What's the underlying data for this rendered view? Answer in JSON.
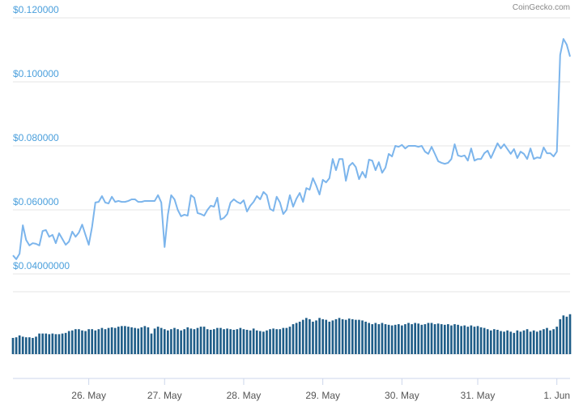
{
  "chart_data": {
    "type": "line",
    "credit": "CoinGecko.com",
    "color": "#7cb5ec",
    "ylim": [
      0.04,
      0.12
    ],
    "yticks": [
      {
        "value": 0.04,
        "label": "$0.04000000"
      },
      {
        "value": 0.06,
        "label": "$0.060000"
      },
      {
        "value": 0.08,
        "label": "$0.080000"
      },
      {
        "value": 0.1,
        "label": "$0.100000"
      },
      {
        "value": 0.12,
        "label": "$0.120000"
      }
    ],
    "grid": true,
    "categories": [
      null,
      null,
      null,
      null,
      null,
      null,
      null,
      null,
      null,
      null,
      null,
      null,
      null,
      null,
      null,
      null,
      null,
      null,
      null,
      null,
      null,
      null,
      null,
      "26. May",
      null,
      null,
      null,
      null,
      null,
      null,
      null,
      null,
      null,
      null,
      null,
      null,
      null,
      null,
      null,
      null,
      null,
      null,
      null,
      null,
      null,
      null,
      "27. May",
      null,
      null,
      null,
      null,
      null,
      null,
      null,
      null,
      null,
      null,
      null,
      null,
      null,
      null,
      null,
      null,
      null,
      null,
      null,
      null,
      null,
      null,
      null,
      "28. May",
      null,
      null,
      null,
      null,
      null,
      null,
      null,
      null,
      null,
      null,
      null,
      null,
      null,
      null,
      null,
      null,
      null,
      null,
      null,
      null,
      null,
      null,
      null,
      "29. May",
      null,
      null,
      null,
      null,
      null,
      null,
      null,
      null,
      null,
      null,
      null,
      null,
      null,
      null,
      null,
      null,
      null,
      null,
      null,
      null,
      null,
      null,
      null,
      "30. May",
      null,
      null,
      null,
      null,
      null,
      null,
      null,
      null,
      null,
      null,
      null,
      null,
      null,
      null,
      null,
      null,
      null,
      null,
      null,
      null,
      null,
      null,
      "31. May",
      null,
      null,
      null,
      null,
      null,
      null,
      null,
      null,
      null,
      null,
      null,
      null,
      null,
      null,
      null,
      null,
      null,
      null,
      null,
      null,
      null,
      null,
      null,
      "1. Jun",
      null,
      null,
      null,
      null
    ],
    "values": [
      0.0458,
      0.0446,
      0.0463,
      0.0552,
      0.0506,
      0.0489,
      0.0496,
      0.0494,
      0.0489,
      0.0534,
      0.0537,
      0.0516,
      0.0522,
      0.0496,
      0.0527,
      0.0509,
      0.0491,
      0.0501,
      0.0532,
      0.0516,
      0.0529,
      0.0554,
      0.0522,
      0.0491,
      0.0547,
      0.0623,
      0.0625,
      0.0643,
      0.0623,
      0.062,
      0.0641,
      0.0625,
      0.0628,
      0.0625,
      0.0625,
      0.0628,
      0.0633,
      0.0633,
      0.0625,
      0.0625,
      0.0628,
      0.0628,
      0.0628,
      0.0628,
      0.0646,
      0.0623,
      0.0484,
      0.0585,
      0.0646,
      0.0633,
      0.06,
      0.058,
      0.0585,
      0.0582,
      0.0646,
      0.0638,
      0.059,
      0.0587,
      0.0582,
      0.06,
      0.0613,
      0.061,
      0.0638,
      0.057,
      0.0575,
      0.0587,
      0.0623,
      0.0633,
      0.0625,
      0.062,
      0.063,
      0.0595,
      0.0613,
      0.0625,
      0.0643,
      0.0633,
      0.0656,
      0.0646,
      0.0603,
      0.0597,
      0.0641,
      0.0623,
      0.0587,
      0.06,
      0.0646,
      0.061,
      0.0635,
      0.0653,
      0.0625,
      0.0668,
      0.0663,
      0.0699,
      0.0676,
      0.0648,
      0.0694,
      0.0686,
      0.0699,
      0.0759,
      0.0724,
      0.0759,
      0.0759,
      0.0691,
      0.0737,
      0.0747,
      0.0734,
      0.0696,
      0.0719,
      0.0701,
      0.0757,
      0.0754,
      0.0724,
      0.0749,
      0.0716,
      0.0732,
      0.0775,
      0.0767,
      0.08,
      0.0797,
      0.0803,
      0.0792,
      0.08,
      0.08,
      0.08,
      0.0797,
      0.08,
      0.0782,
      0.0775,
      0.0797,
      0.0775,
      0.0752,
      0.0747,
      0.0744,
      0.0747,
      0.0759,
      0.0805,
      0.077,
      0.0767,
      0.077,
      0.0754,
      0.0792,
      0.0754,
      0.0759,
      0.0759,
      0.0777,
      0.0785,
      0.0762,
      0.0785,
      0.0808,
      0.0792,
      0.0805,
      0.079,
      0.0775,
      0.079,
      0.0762,
      0.0782,
      0.0775,
      0.0759,
      0.0792,
      0.0759,
      0.0764,
      0.0762,
      0.0795,
      0.0777,
      0.0777,
      0.0767,
      0.0782,
      0.1084,
      0.1134,
      0.1116,
      0.1079
    ],
    "volume": {
      "color": "#1f5d88",
      "ylim": [
        0,
        100
      ],
      "values": [
        26,
        27,
        30,
        28,
        27,
        27,
        26,
        28,
        33,
        33,
        33,
        32,
        33,
        32,
        32,
        33,
        34,
        37,
        38,
        40,
        40,
        38,
        37,
        40,
        40,
        38,
        40,
        42,
        40,
        42,
        43,
        42,
        44,
        45,
        45,
        44,
        43,
        42,
        41,
        43,
        45,
        43,
        33,
        41,
        44,
        42,
        40,
        38,
        40,
        42,
        40,
        38,
        40,
        43,
        41,
        40,
        42,
        44,
        44,
        40,
        39,
        40,
        42,
        42,
        40,
        41,
        40,
        39,
        40,
        42,
        40,
        39,
        38,
        41,
        38,
        37,
        36,
        38,
        40,
        41,
        40,
        40,
        42,
        42,
        44,
        48,
        50,
        52,
        55,
        58,
        56,
        52,
        54,
        58,
        56,
        55,
        52,
        54,
        56,
        58,
        56,
        55,
        57,
        56,
        55,
        55,
        54,
        52,
        50,
        48,
        50,
        48,
        50,
        48,
        47,
        46,
        47,
        48,
        46,
        48,
        50,
        48,
        50,
        49,
        47,
        48,
        50,
        50,
        48,
        49,
        48,
        47,
        48,
        46,
        48,
        47,
        45,
        46,
        44,
        46,
        44,
        45,
        43,
        42,
        40,
        38,
        40,
        39,
        37,
        36,
        38,
        36,
        34,
        38,
        36,
        38,
        40,
        36,
        38,
        36,
        38,
        40,
        42,
        38,
        40,
        44,
        56,
        62,
        60,
        64
      ]
    }
  }
}
